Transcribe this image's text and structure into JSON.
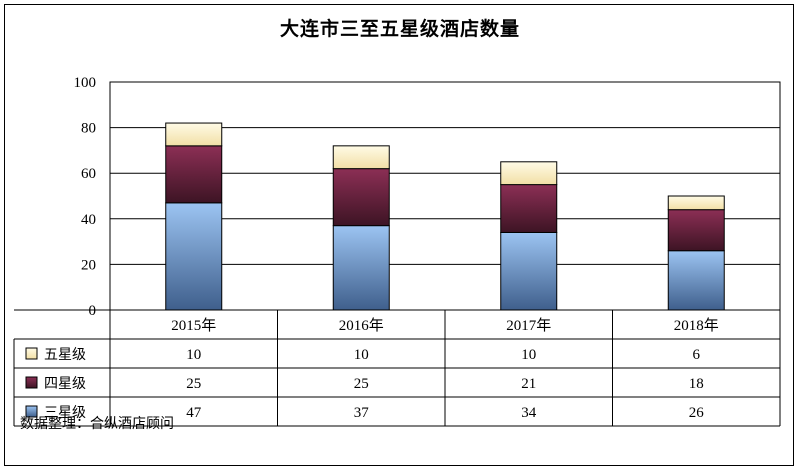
{
  "chart_data": {
    "type": "bar",
    "stacked": true,
    "title": "大连市三至五星级酒店数量",
    "categories": [
      "2015年",
      "2016年",
      "2017年",
      "2018年"
    ],
    "series": [
      {
        "name": "三星级",
        "values": [
          47,
          37,
          34,
          26
        ],
        "color": "#8fb6e6"
      },
      {
        "name": "四星级",
        "values": [
          25,
          25,
          21,
          18
        ],
        "color": "#7a2a48"
      },
      {
        "name": "五星级",
        "values": [
          10,
          10,
          10,
          6
        ],
        "color": "#fff2c4"
      }
    ],
    "ylim": [
      0,
      100
    ],
    "yticks": [
      0,
      20,
      40,
      60,
      80,
      100
    ],
    "grid": true,
    "legend_placement": "data-table"
  },
  "source_note": "数据整理：合纵酒店顾问"
}
